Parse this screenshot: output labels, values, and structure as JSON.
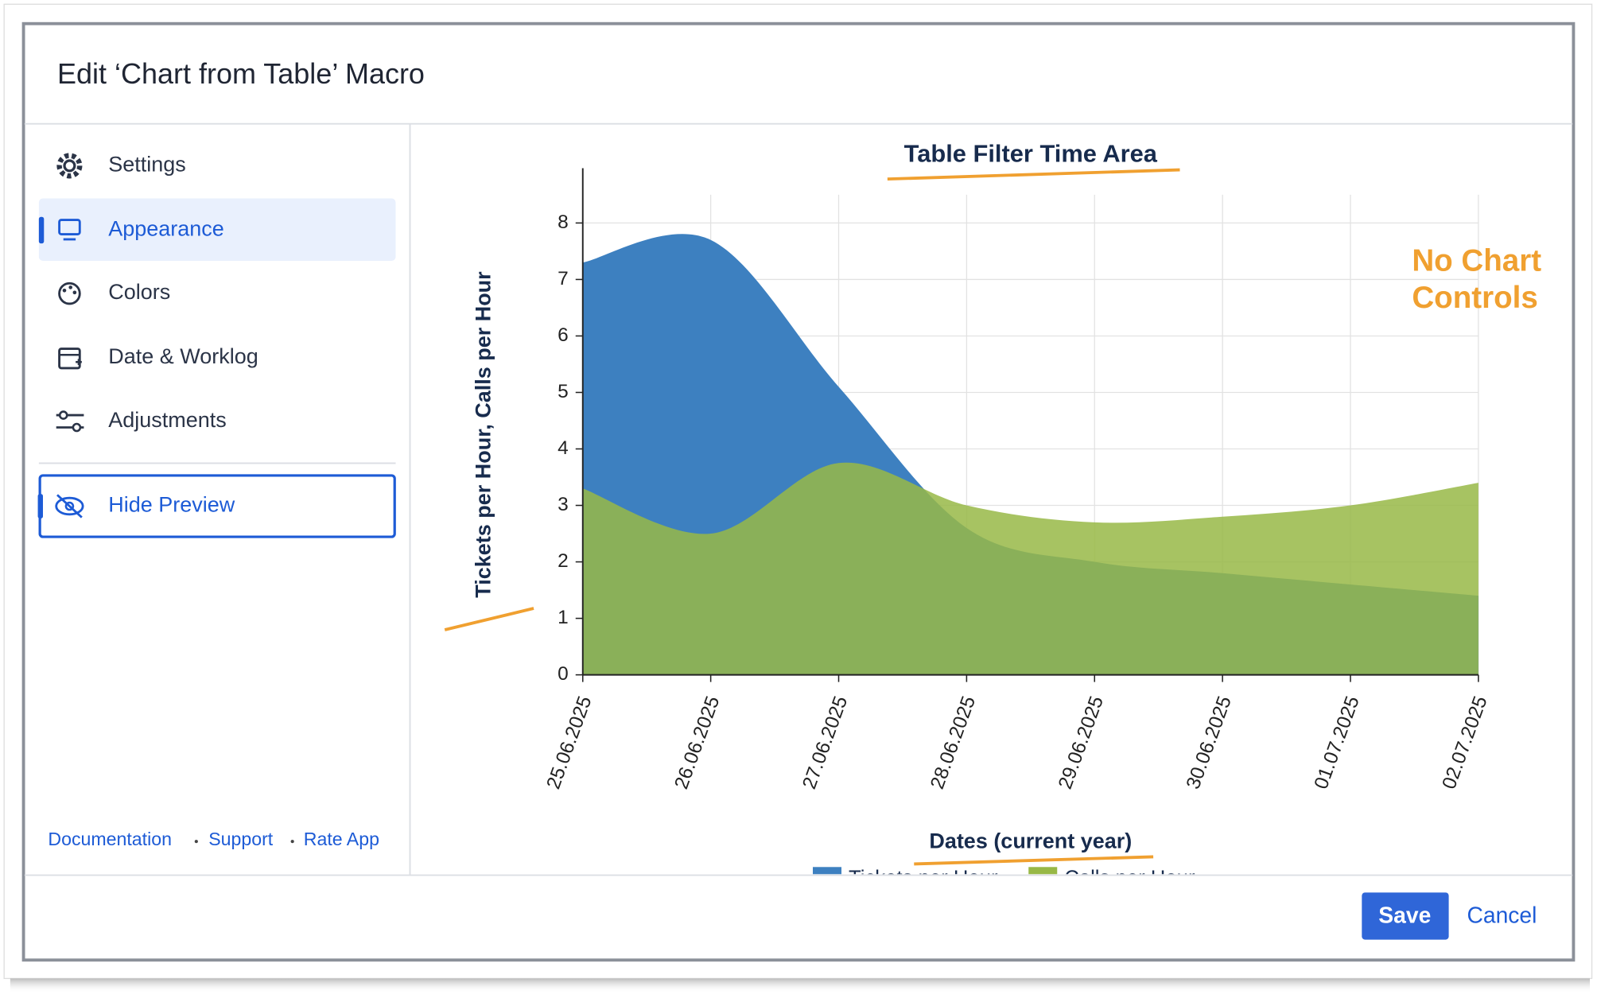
{
  "dialog": {
    "title": "Edit ‘Chart from Table’ Macro",
    "sidebar": {
      "items": [
        "Settings",
        "Appearance",
        "Colors",
        "Date & Worklog",
        "Adjustments"
      ],
      "toggle": "Hide Preview",
      "links": [
        "Documentation",
        "Support",
        "Rate App"
      ]
    },
    "buttons": {
      "save": "Save",
      "cancel": "Cancel"
    }
  },
  "chart_data": {
    "type": "area",
    "title": "Table Filter Time Area",
    "x_label": "Dates (current year)",
    "y_label": "Tickets per Hour, Calls per Hour",
    "annotations": [
      "No Chart",
      "Controls"
    ],
    "categories": [
      "25.06.2025",
      "26.06.2025",
      "27.06.2025",
      "28.06.2025",
      "29.06.2025",
      "30.06.2025",
      "01.07.2025",
      "02.07.2025"
    ],
    "series": [
      {
        "name": "Tickets per Hour",
        "color": "#3d80c0",
        "values": [
          7.3,
          7.7,
          5.1,
          2.6,
          2.0,
          1.8,
          1.6,
          1.4
        ]
      },
      {
        "name": "Calls per Hour",
        "color": "#98b846",
        "values": [
          3.3,
          2.5,
          3.75,
          3.0,
          2.7,
          2.8,
          3.0,
          3.4
        ]
      }
    ],
    "ylim": [
      0,
      8.5
    ],
    "yticks": [
      0,
      1,
      2,
      3,
      4,
      5,
      6,
      7,
      8
    ],
    "grid": true
  }
}
